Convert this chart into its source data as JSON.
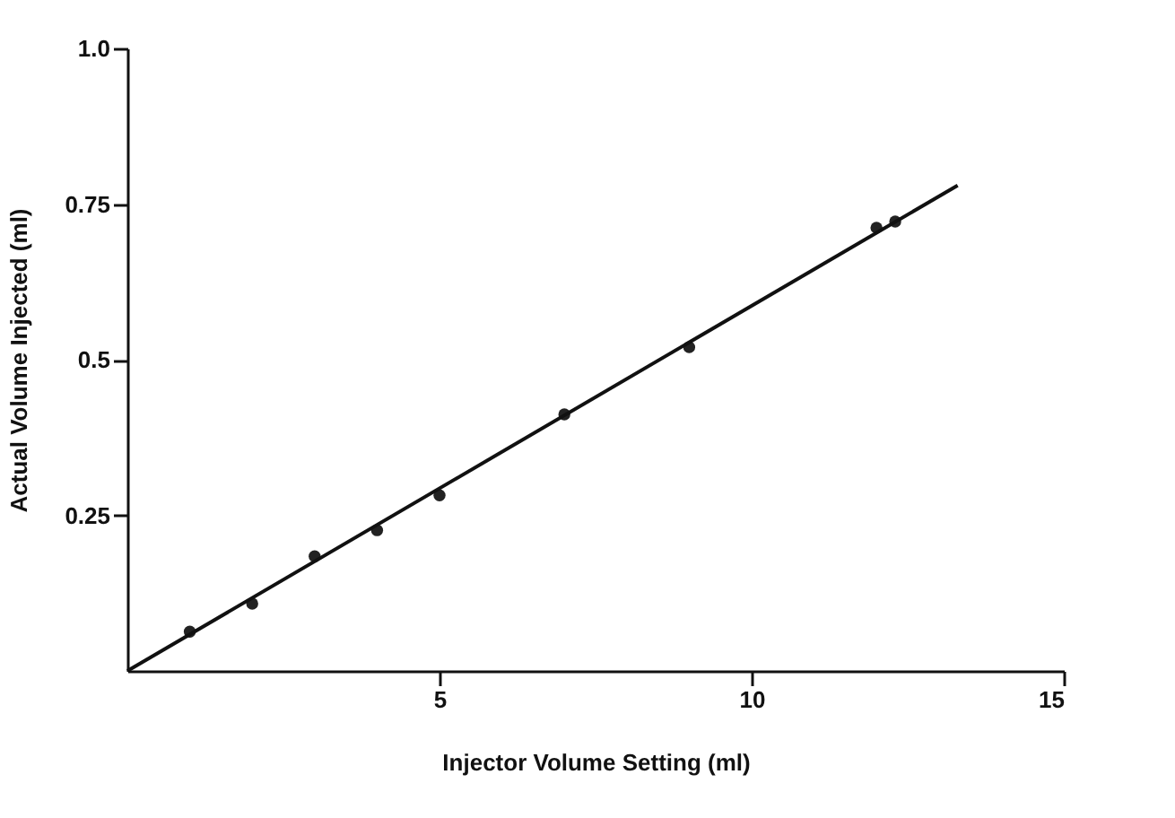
{
  "chart_data": {
    "type": "scatter",
    "xlabel": "Injector Volume Setting (ml)",
    "ylabel": "Actual Volume Injected (ml)",
    "xlim": [
      0,
      15
    ],
    "ylim": [
      0,
      1
    ],
    "xticks": [
      5,
      10,
      15
    ],
    "yticks": [
      0.25,
      0.5,
      0.75,
      {
        "value": 1,
        "label": "1.0"
      }
    ],
    "grid": false,
    "series": [
      {
        "marker": "circle",
        "color": "#222222",
        "x": [
          1,
          2,
          3,
          4,
          5,
          7,
          9,
          12,
          12.3
        ],
        "values": [
          0.063,
          0.108,
          0.184,
          0.226,
          0.282,
          0.412,
          0.52,
          0.712,
          0.722
        ]
      },
      {
        "type": "line",
        "color": "#111111",
        "line_style": "solid",
        "marker": "none",
        "x": [
          0,
          13.3
        ],
        "values": [
          0,
          0.78
        ]
      }
    ]
  }
}
